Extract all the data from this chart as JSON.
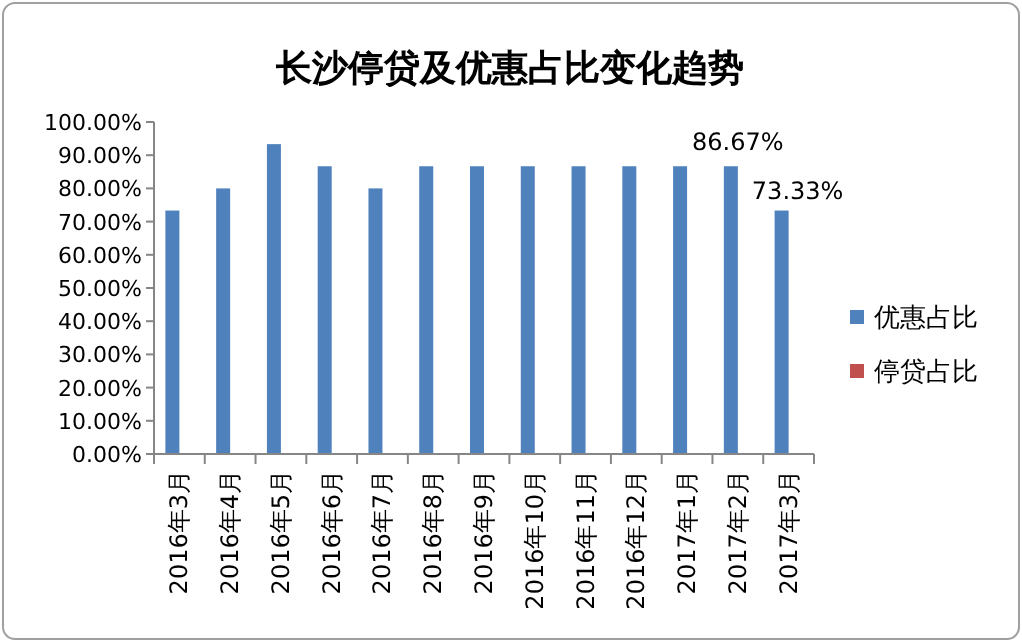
{
  "chart_data": {
    "type": "bar",
    "title": "长沙停贷及优惠占比变化趋势",
    "categories": [
      "2016年3月",
      "2016年4月",
      "2016年5月",
      "2016年6月",
      "2016年7月",
      "2016年8月",
      "2016年9月",
      "2016年10月",
      "2016年11月",
      "2016年12月",
      "2017年1月",
      "2017年2月",
      "2017年3月"
    ],
    "series": [
      {
        "name": "优惠占比",
        "color": "#4f81bd",
        "values": [
          73.33,
          80,
          93.33,
          86.67,
          80,
          86.67,
          86.67,
          86.67,
          86.67,
          86.67,
          86.67,
          86.67,
          73.33
        ],
        "value_labels": [
          null,
          null,
          null,
          null,
          null,
          null,
          null,
          null,
          null,
          null,
          null,
          "86.67%",
          "73.33%"
        ]
      },
      {
        "name": "停贷占比",
        "color": "#c0504d",
        "values": [
          0,
          0,
          0,
          0,
          0,
          0,
          0,
          0,
          0,
          0,
          0,
          0,
          0
        ]
      }
    ],
    "ylim": [
      0,
      100
    ],
    "yticks": [
      {
        "value": 0,
        "label": "0.00%"
      },
      {
        "value": 10,
        "label": "10.00%"
      },
      {
        "value": 20,
        "label": "20.00%"
      },
      {
        "value": 30,
        "label": "30.00%"
      },
      {
        "value": 40,
        "label": "40.00%"
      },
      {
        "value": 50,
        "label": "50.00%"
      },
      {
        "value": 60,
        "label": "60.00%"
      },
      {
        "value": 70,
        "label": "70.00%"
      },
      {
        "value": 80,
        "label": "80.00%"
      },
      {
        "value": 90,
        "label": "90.00%"
      },
      {
        "value": 100,
        "label": "100.00%"
      }
    ],
    "grid": false,
    "legend": "right"
  }
}
